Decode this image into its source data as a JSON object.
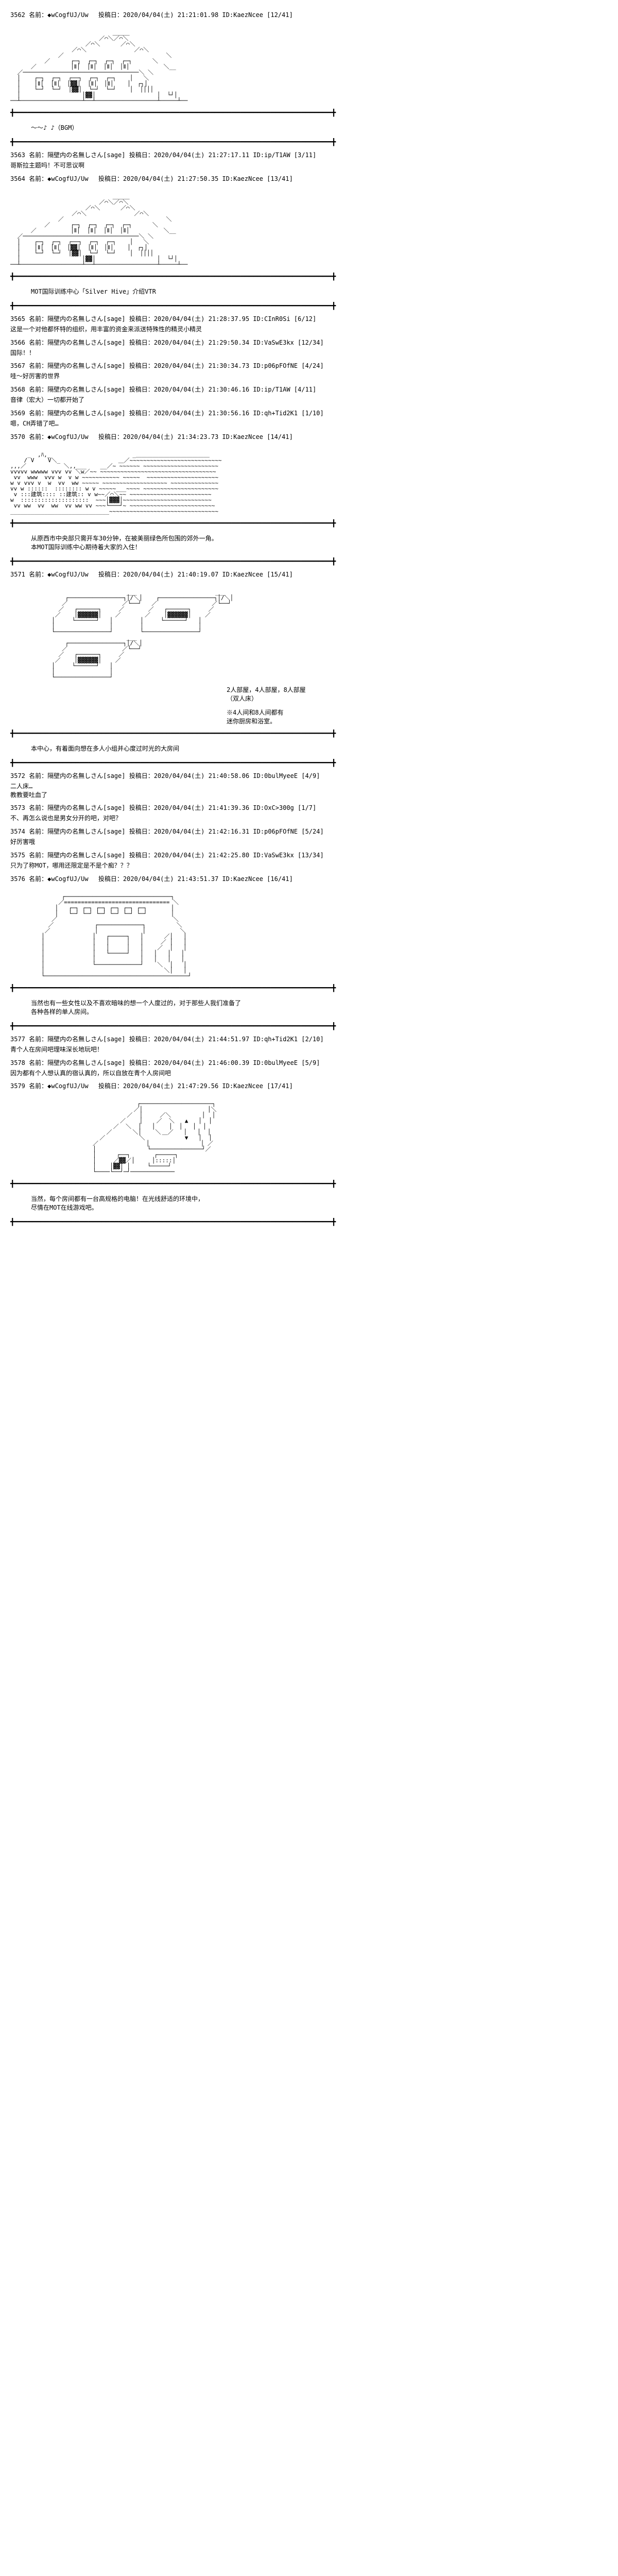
{
  "posts": [
    {
      "num": "3562",
      "header": "名前：◆wCogfUJ/Uw 　投稿日：2020/04/04(土) 21:21:01.98 ID:KaezNcee [12/41]",
      "hasArt": "building1",
      "content": "〜〜♪ ♪（BGM）"
    },
    {
      "num": "3563",
      "header": "名前：隔壁内の名無しさん[sage] 投稿日：2020/04/04(土) 21:27:17.11 ID:ip/T1AW [3/11]",
      "content": "哥斯拉主题吗！不可思议啊"
    },
    {
      "num": "3564",
      "header": "名前：◆wCogfUJ/Uw 　投稿日：2020/04/04(土) 21:27:50.35 ID:KaezNcee [13/41]",
      "hasArt": "building2",
      "content": "MOT国际训练中心「Silver Hive」介绍VTR"
    },
    {
      "num": "3565",
      "header": "名前：隔壁内の名無しさん[sage] 投稿日：2020/04/04(土) 21:28:37.95 ID:CInR0Si [6/12]",
      "content": "这是一个对他都怀特的组织，用丰富的资金来派送特殊性的精灵小精灵"
    },
    {
      "num": "3566",
      "header": "名前：隔壁内の名無しさん[sage] 投稿日：2020/04/04(土) 21:29:50.34 ID:VaSwE3kx [12/34]",
      "content": "国际！！"
    },
    {
      "num": "3567",
      "header": "名前：隔壁内の名無しさん[sage] 投稿日：2020/04/04(土) 21:30:34.73 ID:p06pFOfNE [4/24]",
      "content": "哇～好厉害的世界"
    },
    {
      "num": "3568",
      "header": "名前：隔壁内の名無しさん[sage] 投稿日：2020/04/04(土) 21:30:46.16 ID:ip/T1AW [4/11]",
      "content": "音律（宏大）一切都开始了"
    },
    {
      "num": "3569",
      "header": "名前：隔壁内の名無しさん[sage] 投稿日：2020/04/04(土) 21:30:56.16 ID:qh+Tid2K1 [1/10]",
      "content": "嗯，CH弄错了吧…"
    },
    {
      "num": "3570",
      "header": "名前：◆wCogfUJ/Uw 　投稿日：2020/04/04(土) 21:34:23.73 ID:KaezNcee [14/41]",
      "hasArt": "landscape",
      "content": "从原西市中央部只需开车30分钟，在被美丽绿色所包围的郊外一角。\n本MOT国际训练中心期待着大家的入住！"
    },
    {
      "num": "3571",
      "header": "名前：◆wCogfUJ/Uw 　投稿日：2020/04/04(土) 21:40:19.07 ID:KaezNcee [15/41]",
      "hasArt": "rooms",
      "roomLabels": {
        "label1": "2人部屋，4人部屋，8人部屋\n（双人床）",
        "label2": "※4人间和8人间都有\n迷你厨房和浴室。"
      },
      "content": "本中心，有着面向想在多人小组并心度过时光的大房间"
    },
    {
      "num": "3572",
      "header": "名前：隔壁内の名無しさん[sage] 投稿日：2020/04/04(土) 21:40:58.06 ID:0bulMyeeE [4/9]",
      "content": "二人床…\n教教要吐血了"
    },
    {
      "num": "3573",
      "header": "名前：隔壁内の名無しさん[sage] 投稿日：2020/04/04(土) 21:41:39.36 ID:OxC>300g [1/7]",
      "content": "不、再怎么说也是男女分开的吧，对吧？"
    },
    {
      "num": "3574",
      "header": "名前：隔壁内の名無しさん[sage] 投稿日：2020/04/04(土) 21:42:16.31 ID:p06pFOfNE [5/24]",
      "content": "好厉害哦"
    },
    {
      "num": "3575",
      "header": "名前：隔壁内の名無しさん[sage] 投稿日：2020/04/04(土) 21:42:25.80 ID:VaSwE3kx [13/34]",
      "content": "只为了称MOT，哪用还限定是不是个痴？？？"
    },
    {
      "num": "3576",
      "header": "名前：◆wCogfUJ/Uw 　投稿日：2020/04/04(土) 21:43:51.37 ID:KaezNcee [16/41]",
      "hasArt": "singleroom",
      "content": "当然也有一些女性以及不喜欢暗味的想一个人度过的，对于那些人我们准备了\n各种各样的单人房间。"
    },
    {
      "num": "3577",
      "header": "名前：隔壁内の名無しさん[sage] 投稿日：2020/04/04(土) 21:44:51.97 ID:qh+Tid2K1 [2/10]",
      "content": "青个人在房间吧理味深长地玩吧！"
    },
    {
      "num": "3578",
      "header": "名前：隔壁内の名無しさん[sage] 投稿日：2020/04/04(土) 21:46:00.39 ID:0bulMyeeE [5/9]",
      "content": "因为都有个人想认真的宿认真的，所以自放在青个人房间吧"
    },
    {
      "num": "3579",
      "header": "名前：◆wCogfUJ/Uw 　投稿日：2020/04/04(土) 21:47:29.56 ID:KaezNcee [17/41]",
      "hasArt": "computer",
      "content": "当然，每个房间都有一台高规格的电脑！在光线舒适的环境中，\n尽情在MOT在线游戏吧。"
    }
  ],
  "separator": "╋━━━━━━━━━━━━━━━━━━━━━━━━━━━━━━━━━━━━━━━━━━━━━━━━━━━━━━━━━━━━━━━━━━━━━━━━━╋"
}
